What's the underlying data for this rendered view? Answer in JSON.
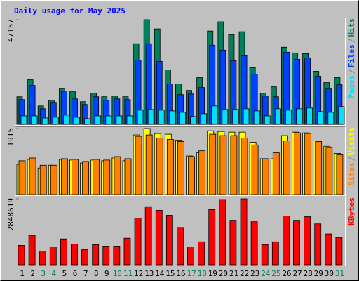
{
  "chart_data": {
    "type": "bar",
    "title": "Daily usage for May 2025",
    "categories": [
      "1",
      "2",
      "3",
      "4",
      "5",
      "6",
      "7",
      "8",
      "9",
      "10",
      "11",
      "12",
      "13",
      "14",
      "15",
      "16",
      "17",
      "18",
      "19",
      "20",
      "21",
      "22",
      "23",
      "24",
      "25",
      "26",
      "27",
      "28",
      "29",
      "30",
      "31"
    ],
    "category_colors": [
      "#000000",
      "#000000",
      "#00805C",
      "#00805C",
      "#000000",
      "#000000",
      "#000000",
      "#000000",
      "#000000",
      "#00805C",
      "#00805C",
      "#000000",
      "#000000",
      "#000000",
      "#000000",
      "#000000",
      "#00805C",
      "#00805C",
      "#000000",
      "#000000",
      "#000000",
      "#000000",
      "#000000",
      "#00805C",
      "#00805C",
      "#000000",
      "#000000",
      "#000000",
      "#000000",
      "#000000",
      "#00805C"
    ],
    "legend_separator": "/",
    "panels": [
      {
        "ylim": [
          0,
          47157
        ],
        "yticks": [
          47157
        ],
        "series": [
          {
            "name": "Pages",
            "color": "#00E0FF",
            "values": [
              3820,
              3820,
              2870,
              3190,
              4140,
              3190,
              2550,
              3820,
              3820,
              3820,
              3820,
              6370,
              6690,
              6370,
              6050,
              5420,
              3500,
              4780,
              8280,
              6690,
              6690,
              7010,
              6050,
              3820,
              7010,
              6370,
              7010,
              7330,
              5730,
              5420,
              7960
            ]
          },
          {
            "name": "Files",
            "color": "#0040FF",
            "values": [
              11150,
              17520,
              7010,
              9880,
              14970,
              11470,
              8920,
              12430,
              10830,
              11470,
              11150,
              28990,
              36320,
              28360,
              18160,
              13380,
              13700,
              16570,
              35680,
              33450,
              28670,
              30900,
              22620,
              12740,
              12430,
              32500,
              29310,
              29950,
              21660,
              16250,
              17840
            ]
          },
          {
            "name": "Hits",
            "color": "#00805C",
            "values": [
              12430,
              20070,
              8280,
              10830,
              16250,
              14660,
              10200,
              14020,
              12430,
              12740,
              12430,
              36320,
              47157,
              43010,
              24530,
              18160,
              15290,
              21030,
              42050,
              46200,
              40460,
              41740,
              25490,
              14020,
              16890,
              34730,
              32180,
              31860,
              23890,
              18800,
              21030
            ]
          }
        ]
      },
      {
        "ylim": [
          0,
          1915
        ],
        "yticks": [
          1915
        ],
        "series": [
          {
            "name": "Sites",
            "color": "#FF8000",
            "values": [
              980,
              1060,
              850,
              850,
              1040,
              1020,
              960,
              1020,
              1000,
              1100,
              1040,
              1690,
              1730,
              1640,
              1600,
              1540,
              1100,
              1270,
              1750,
              1710,
              1710,
              1640,
              1440,
              1040,
              1210,
              1560,
              1790,
              1770,
              1540,
              1370,
              1170
            ]
          },
          {
            "name": "Visits",
            "color": "#FFFF00",
            "values": [
              874,
              1020,
              770,
              850,
              1020,
              1000,
              915,
              1000,
              980,
              1060,
              980,
              1730,
              1915,
              1770,
              1750,
              1580,
              1120,
              1210,
              1850,
              1830,
              1810,
              1810,
              1520,
              1040,
              1040,
              1710,
              1810,
              1790,
              1560,
              1400,
              1190
            ]
          }
        ]
      },
      {
        "ylim": [
          0,
          2848619
        ],
        "yticks": [
          2848619
        ],
        "series": [
          {
            "name": "KBytes",
            "color": "#FF0000",
            "values": [
              836000,
              1270000,
              588000,
              774000,
              1115000,
              898000,
              650000,
              867000,
              805000,
              805000,
              1146000,
              2013000,
              2508000,
              2353000,
              2136000,
              1610000,
              774000,
              991000,
              2384000,
              2818000,
              1920000,
              2848619,
              1858000,
              867000,
              991000,
              2105000,
              1920000,
              2075000,
              1765000,
              1331000,
              1177000
            ]
          }
        ]
      }
    ]
  }
}
